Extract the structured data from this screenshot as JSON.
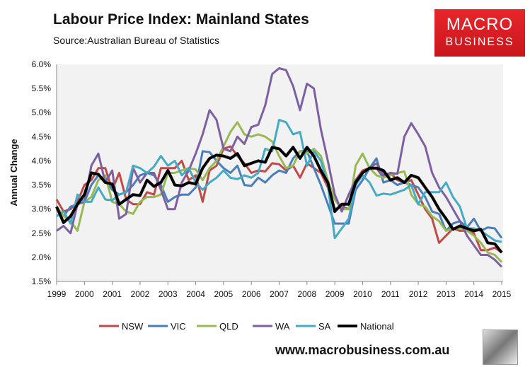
{
  "chart_data": {
    "type": "line",
    "title": "Labour Price Index: Mainland States",
    "subtitle": "Source:Australian Bureau of Statistics",
    "xlabel": "",
    "ylabel": "Annual Change",
    "x_start": 1999,
    "x_step": 0.25,
    "xlim": [
      1999,
      2015
    ],
    "ylim": [
      1.5,
      6.0
    ],
    "x_ticks": [
      "1999",
      "2000",
      "2001",
      "2002",
      "2003",
      "2004",
      "2005",
      "2006",
      "2007",
      "2008",
      "2009",
      "2010",
      "2011",
      "2012",
      "2013",
      "2014",
      "2015"
    ],
    "y_ticks": [
      "1.5%",
      "2.0%",
      "2.5%",
      "3.0%",
      "3.5%",
      "4.0%",
      "4.5%",
      "5.0%",
      "5.5%",
      "6.0%"
    ],
    "legend_position": "bottom",
    "grid": false,
    "series": [
      {
        "name": "NSW",
        "color": "#be4b48",
        "width": 3,
        "values": [
          3.2,
          2.95,
          3.0,
          3.15,
          3.5,
          3.6,
          3.85,
          3.85,
          3.4,
          3.75,
          3.2,
          3.1,
          3.1,
          3.35,
          3.3,
          3.85,
          3.85,
          3.85,
          4.0,
          3.6,
          3.7,
          3.15,
          3.8,
          3.9,
          4.25,
          4.3,
          4.1,
          3.95,
          3.75,
          3.8,
          3.78,
          3.95,
          3.93,
          3.8,
          3.9,
          3.65,
          3.95,
          3.85,
          3.75,
          3.45,
          3.0,
          3.05,
          3.0,
          3.6,
          3.8,
          3.85,
          3.85,
          3.65,
          3.75,
          3.6,
          3.55,
          3.6,
          3.3,
          3.0,
          2.8,
          2.3,
          2.45,
          2.6,
          2.55,
          2.55,
          2.5,
          2.15,
          2.15,
          2.2,
          2.1
        ]
      },
      {
        "name": "VIC",
        "color": "#4a7ebb",
        "width": 3,
        "values": [
          3.0,
          2.85,
          3.05,
          3.1,
          3.15,
          3.5,
          3.7,
          3.6,
          3.4,
          3.3,
          3.35,
          3.5,
          3.7,
          3.75,
          3.7,
          3.5,
          3.15,
          3.25,
          3.3,
          3.3,
          3.45,
          4.2,
          4.18,
          4.0,
          3.85,
          3.75,
          3.9,
          3.5,
          3.48,
          3.65,
          3.55,
          3.7,
          3.8,
          3.75,
          4.05,
          4.2,
          4.2,
          3.85,
          3.5,
          3.1,
          2.7,
          2.7,
          2.7,
          3.4,
          3.6,
          3.85,
          4.05,
          3.55,
          3.6,
          3.5,
          3.55,
          3.5,
          3.45,
          3.25,
          2.95,
          2.9,
          2.55,
          2.7,
          2.75,
          2.62,
          2.8,
          2.55,
          2.62,
          2.6,
          2.4
        ]
      },
      {
        "name": "QLD",
        "color": "#98b954",
        "width": 3,
        "values": [
          3.05,
          2.85,
          2.75,
          2.55,
          3.15,
          3.25,
          3.6,
          3.7,
          3.15,
          3.1,
          2.95,
          2.9,
          3.15,
          3.25,
          3.25,
          3.3,
          3.75,
          3.75,
          3.8,
          3.85,
          3.82,
          3.6,
          3.85,
          4.0,
          4.3,
          4.6,
          4.8,
          4.55,
          4.5,
          4.55,
          4.5,
          4.4,
          4.1,
          3.85,
          3.9,
          4.2,
          4.15,
          4.25,
          4.1,
          3.6,
          3.2,
          3.0,
          3.0,
          3.9,
          4.15,
          3.85,
          3.7,
          3.65,
          3.7,
          3.75,
          3.78,
          3.3,
          3.1,
          3.05,
          2.85,
          2.75,
          2.55,
          2.6,
          2.6,
          2.55,
          2.45,
          2.3,
          2.1,
          2.05,
          1.9
        ]
      },
      {
        "name": "WA",
        "color": "#7d60a0",
        "width": 3,
        "values": [
          2.55,
          2.65,
          2.5,
          3.1,
          3.15,
          3.9,
          4.15,
          3.55,
          3.8,
          2.8,
          2.9,
          3.85,
          3.55,
          3.75,
          3.75,
          3.4,
          3.0,
          3.0,
          3.55,
          3.8,
          4.15,
          4.55,
          5.05,
          4.85,
          4.25,
          4.2,
          4.5,
          4.35,
          4.7,
          4.75,
          5.15,
          5.8,
          5.92,
          5.88,
          5.55,
          5.05,
          5.6,
          5.5,
          4.65,
          4.0,
          3.3,
          2.95,
          3.3,
          3.6,
          3.75,
          3.85,
          3.95,
          3.7,
          3.75,
          3.73,
          4.5,
          4.78,
          4.55,
          4.3,
          3.75,
          3.45,
          3.25,
          3.0,
          2.75,
          2.45,
          2.25,
          2.05,
          2.05,
          1.95,
          1.8
        ]
      },
      {
        "name": "SA",
        "color": "#46aac5",
        "width": 3,
        "values": [
          2.85,
          2.95,
          2.7,
          3.3,
          3.15,
          3.15,
          3.45,
          3.2,
          3.18,
          3.3,
          3.35,
          3.9,
          3.85,
          3.75,
          3.88,
          4.1,
          3.9,
          4.0,
          3.7,
          3.85,
          3.55,
          3.4,
          3.55,
          3.65,
          3.8,
          3.65,
          3.62,
          3.7,
          3.65,
          3.75,
          4.25,
          4.2,
          4.85,
          4.8,
          4.55,
          4.6,
          3.9,
          4.2,
          4.0,
          3.5,
          2.4,
          2.6,
          2.8,
          3.5,
          3.7,
          3.55,
          3.28,
          3.32,
          3.3,
          3.35,
          3.4,
          3.5,
          3.1,
          3.35,
          3.35,
          3.35,
          3.55,
          3.25,
          3.05,
          2.6,
          2.6,
          2.55,
          2.45,
          2.35,
          2.32
        ]
      },
      {
        "name": "National",
        "color": "#000000",
        "width": 4,
        "values": [
          3.05,
          2.72,
          2.85,
          3.1,
          3.3,
          3.75,
          3.72,
          3.55,
          3.52,
          3.1,
          3.2,
          3.3,
          3.28,
          3.6,
          3.47,
          3.55,
          3.8,
          3.5,
          3.48,
          3.55,
          3.52,
          3.85,
          4.05,
          4.12,
          4.1,
          4.05,
          4.15,
          3.9,
          3.95,
          4.0,
          3.97,
          4.28,
          4.25,
          4.1,
          4.28,
          4.05,
          4.28,
          4.1,
          3.8,
          3.55,
          2.95,
          3.1,
          3.1,
          3.55,
          3.75,
          3.85,
          3.85,
          3.8,
          3.6,
          3.65,
          3.55,
          3.7,
          3.65,
          3.45,
          3.25,
          3.0,
          2.8,
          2.58,
          2.65,
          2.6,
          2.55,
          2.58,
          2.3,
          2.28,
          2.1
        ]
      }
    ]
  },
  "logo": {
    "line1": "MACRO",
    "line2": "BUSINESS"
  },
  "footer": {
    "url": "www.macrobusiness.com.au"
  }
}
